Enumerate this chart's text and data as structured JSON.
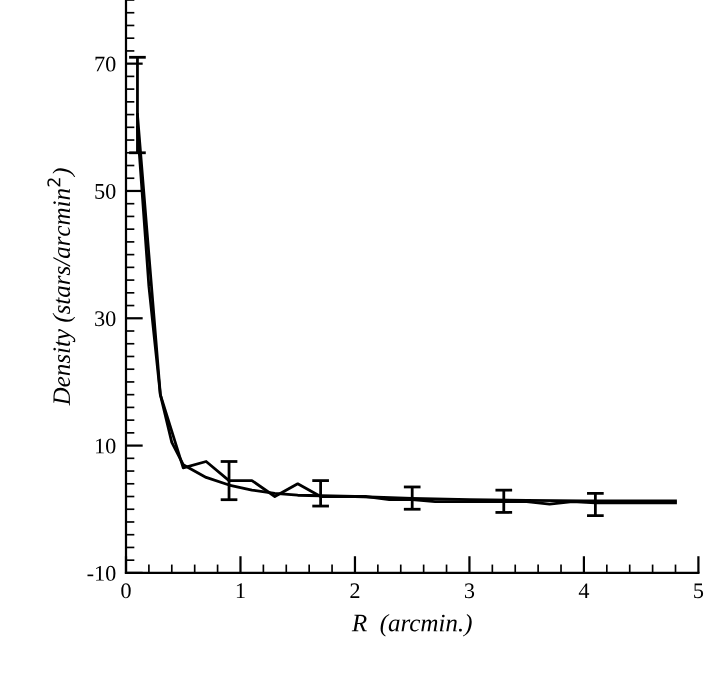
{
  "chart_data": {
    "type": "line",
    "xlabel": "R  (arcmin.)",
    "ylabel": "Density (stars/arcmin$^{2}$)",
    "xlim": [
      0,
      5
    ],
    "ylim": [
      -10,
      80
    ],
    "xticks": [
      0,
      1,
      2,
      3,
      4,
      5
    ],
    "yticks": [
      -10,
      10,
      30,
      50,
      70
    ],
    "grid": false,
    "marker": "none",
    "line_style": "solid",
    "series": [
      {
        "color": "#000000",
        "x": [
          0.1,
          0.3,
          0.5,
          0.7,
          0.9,
          1.1,
          1.3,
          1.5,
          1.7,
          1.9,
          2.1,
          2.3,
          2.5,
          2.7,
          2.9,
          3.1,
          3.3,
          3.5,
          3.7,
          3.9,
          4.1,
          4.3,
          4.5,
          4.7,
          4.8
        ],
        "values": [
          62,
          18,
          6.5,
          7.5,
          4.5,
          4.5,
          2,
          4,
          2,
          2,
          2,
          1.5,
          1.5,
          1.2,
          1.2,
          1.2,
          1.2,
          1.2,
          0.8,
          1.2,
          1,
          1,
          1,
          1,
          1
        ],
        "errors": [
          [
            56,
            71
          ],
          null,
          null,
          null,
          [
            1.5,
            7.5
          ],
          null,
          null,
          null,
          [
            0.5,
            4.5
          ],
          null,
          null,
          null,
          [
            0,
            3.5
          ],
          null,
          null,
          null,
          [
            -0.5,
            3
          ],
          null,
          null,
          null,
          [
            -1,
            2.5
          ],
          null,
          null,
          null,
          null
        ]
      },
      {
        "color": "#000000",
        "x": [
          0.1,
          0.2,
          0.3,
          0.4,
          0.5,
          0.7,
          0.9,
          1.1,
          1.3,
          1.5,
          2,
          2.5,
          3,
          3.5,
          4,
          4.8
        ],
        "values": [
          60,
          35,
          18,
          10.5,
          7,
          5,
          3.8,
          3,
          2.5,
          2.2,
          2,
          1.7,
          1.5,
          1.4,
          1.3,
          1.3
        ]
      }
    ]
  }
}
